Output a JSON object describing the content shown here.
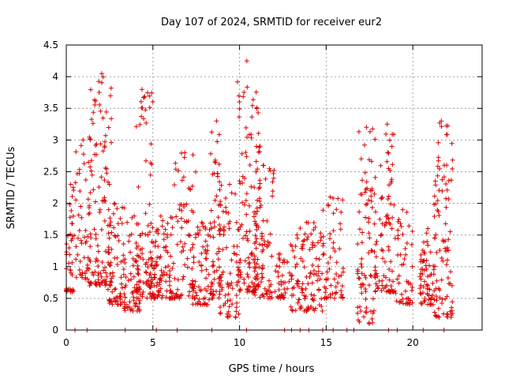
{
  "chart_data": {
    "type": "scatter",
    "title": "Day 107 of 2024, SRMTID for receiver eur2",
    "xlabel": "GPS time / hours",
    "ylabel": "SRMTID / TECUs",
    "xlim": [
      0,
      24
    ],
    "ylim": [
      0,
      4.5
    ],
    "xticks": [
      0,
      5,
      10,
      15,
      20
    ],
    "xtick_labels": [
      "0",
      "5",
      "10",
      "15",
      "20"
    ],
    "yticks": [
      0,
      0.5,
      1,
      1.5,
      2,
      2.5,
      3,
      3.5,
      4,
      4.5
    ],
    "ytick_labels": [
      "0",
      "0.5",
      "1",
      "1.5",
      "2",
      "2.5",
      "3",
      "3.5",
      "4",
      "4.5"
    ],
    "grid": true,
    "marker": "+",
    "series": [
      {
        "name": "SRMTID",
        "color": "#dd0000",
        "clusters": [
          {
            "x_range": [
              0.0,
              0.5
            ],
            "y_range": [
              0.6,
              2.3
            ],
            "count": 40
          },
          {
            "x_range": [
              0.5,
              1.3
            ],
            "y_range": [
              0.8,
              3.0
            ],
            "count": 45
          },
          {
            "x_range": [
              1.3,
              2.6
            ],
            "y_range": [
              0.7,
              4.05
            ],
            "count": 120
          },
          {
            "x_range": [
              2.4,
              3.4
            ],
            "y_range": [
              0.4,
              2.0
            ],
            "count": 70
          },
          {
            "x_range": [
              3.3,
              4.3
            ],
            "y_range": [
              0.3,
              1.8
            ],
            "count": 60
          },
          {
            "x_range": [
              4.0,
              5.0
            ],
            "y_range": [
              0.5,
              3.8
            ],
            "count": 80
          },
          {
            "x_range": [
              4.8,
              6.2
            ],
            "y_range": [
              0.5,
              1.8
            ],
            "count": 110
          },
          {
            "x_range": [
              6.2,
              7.5
            ],
            "y_range": [
              0.5,
              2.8
            ],
            "count": 80
          },
          {
            "x_range": [
              7.3,
              8.3
            ],
            "y_range": [
              0.4,
              1.7
            ],
            "count": 60
          },
          {
            "x_range": [
              8.3,
              9.0
            ],
            "y_range": [
              0.5,
              3.3
            ],
            "count": 60
          },
          {
            "x_range": [
              8.8,
              10.0
            ],
            "y_range": [
              0.2,
              2.3
            ],
            "count": 70
          },
          {
            "x_range": [
              9.8,
              11.2
            ],
            "y_range": [
              0.6,
              4.25
            ],
            "count": 120
          },
          {
            "x_range": [
              10.8,
              12.0
            ],
            "y_range": [
              0.5,
              2.6
            ],
            "count": 80
          },
          {
            "x_range": [
              12.0,
              12.8
            ],
            "y_range": [
              0.5,
              1.2
            ],
            "count": 35
          },
          {
            "x_range": [
              12.8,
              14.8
            ],
            "y_range": [
              0.3,
              1.7
            ],
            "count": 110
          },
          {
            "x_range": [
              14.8,
              16.0
            ],
            "y_range": [
              0.5,
              2.1
            ],
            "count": 60
          },
          {
            "x_range": [
              16.8,
              17.8
            ],
            "y_range": [
              0.1,
              3.2
            ],
            "count": 80
          },
          {
            "x_range": [
              17.8,
              19.0
            ],
            "y_range": [
              0.6,
              3.25
            ],
            "count": 90
          },
          {
            "x_range": [
              19.0,
              20.0
            ],
            "y_range": [
              0.4,
              1.9
            ],
            "count": 50
          },
          {
            "x_range": [
              20.4,
              21.2
            ],
            "y_range": [
              0.4,
              1.6
            ],
            "count": 60
          },
          {
            "x_range": [
              21.2,
              22.3
            ],
            "y_range": [
              0.2,
              3.3
            ],
            "count": 100
          }
        ]
      },
      {
        "name": "Zero markers",
        "color": "#dd0000",
        "x": [
          0.5,
          1.2,
          3.4,
          5.2,
          6.4,
          8.4,
          10.4,
          12.6,
          13.0,
          13.5,
          14.0,
          14.8,
          15.4,
          16.2,
          16.6,
          18.6,
          19.1,
          20.6,
          21.8
        ],
        "y": [
          0,
          0,
          0,
          0,
          0,
          0,
          0,
          0,
          0,
          0,
          0,
          0,
          0,
          0,
          0,
          0,
          0,
          0,
          0
        ]
      }
    ]
  }
}
